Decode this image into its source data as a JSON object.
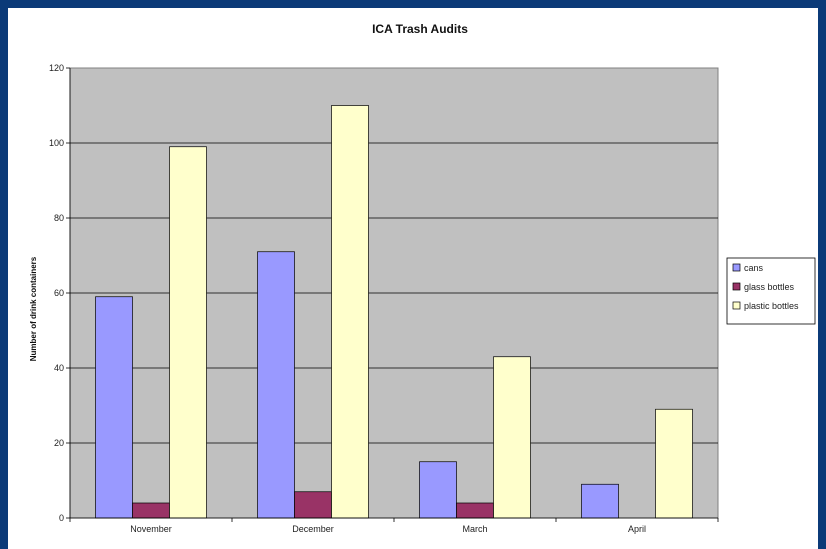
{
  "chart_data": {
    "type": "bar",
    "title": "ICA Trash Audits",
    "xlabel": "",
    "ylabel": "Number of drink containers",
    "ylim": [
      0,
      120
    ],
    "yticks": [
      0,
      20,
      40,
      60,
      80,
      100,
      120
    ],
    "categories": [
      "November",
      "December",
      "March",
      "April"
    ],
    "series": [
      {
        "name": "cans",
        "color": "#9999ff",
        "values": [
          59,
          71,
          15,
          9
        ]
      },
      {
        "name": "glass bottles",
        "color": "#993366",
        "values": [
          4,
          7,
          4,
          0
        ]
      },
      {
        "name": "plastic bottles",
        "color": "#ffffcc",
        "values": [
          99,
          110,
          43,
          29
        ]
      }
    ],
    "grid": true,
    "legend_position": "right",
    "plot_background": "#c0c0c0"
  }
}
